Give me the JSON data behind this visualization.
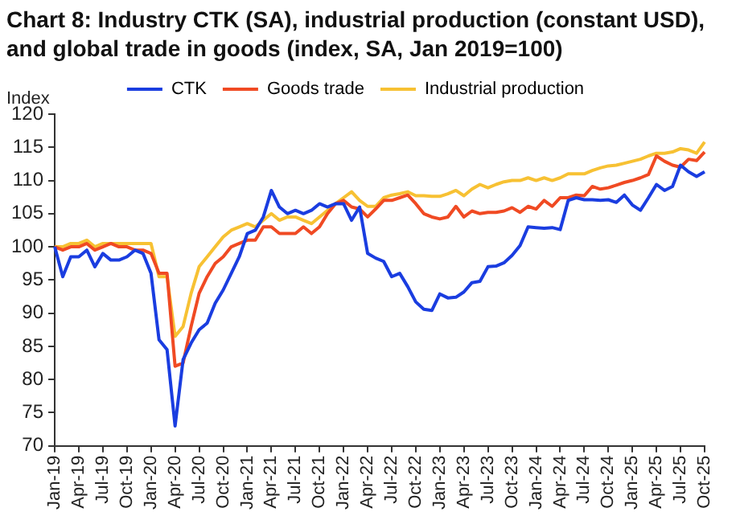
{
  "chart_data": {
    "type": "line",
    "title": "Chart 8: Industry CTK (SA), industrial production (constant USD), and global trade in goods (index, SA, Jan 2019=100)",
    "ylabel": "Index",
    "categories": [
      "Jan-19",
      null,
      null,
      "Apr-19",
      null,
      null,
      "Jul-19",
      null,
      null,
      "Oct-19",
      null,
      null,
      "Jan-20",
      null,
      null,
      "Apr-20",
      null,
      null,
      "Jul-20",
      null,
      null,
      "Oct-20",
      null,
      null,
      "Jan-21",
      null,
      null,
      "Apr-21",
      null,
      null,
      "Jul-21",
      null,
      null,
      "Oct-21",
      null,
      null,
      "Jan-22",
      null,
      null,
      "Apr-22",
      null,
      null,
      "Jul-22",
      null,
      null,
      "Oct-22",
      null,
      null,
      "Jan-23",
      null,
      null,
      "Apr-23",
      null,
      null,
      "Jul-23",
      null,
      null,
      "Oct-23",
      null,
      null,
      "Jan-24",
      null,
      null,
      "Apr-24",
      null,
      null,
      "Jul-24",
      null,
      null,
      "Oct-24",
      null,
      null,
      "Jan-25",
      null,
      null,
      "Apr-25",
      null,
      null,
      "Jul-25",
      null,
      null,
      "Oct-25"
    ],
    "series": [
      {
        "name": "CTK",
        "color": "#1a3de0",
        "values": [
          100,
          95.5,
          98.5,
          98.5,
          99.5,
          97,
          99,
          98,
          98,
          98.5,
          99.5,
          99,
          96,
          86,
          84.5,
          73,
          83,
          85.5,
          87.5,
          88.5,
          91.5,
          93.5,
          96,
          98.5,
          102,
          102.5,
          104.5,
          108.5,
          106,
          105,
          105.5,
          105,
          105.5,
          106.5,
          106,
          106.5,
          106.5,
          104,
          106,
          99,
          98.3,
          97.8,
          95.5,
          96,
          94,
          91.7,
          90.6,
          90.4,
          92.9,
          92.3,
          92.4,
          93.2,
          94.6,
          94.8,
          97,
          97.1,
          97.6,
          98.7,
          100.2,
          103,
          102.9,
          102.8,
          102.9,
          102.6,
          107,
          107.4,
          107.1,
          107.1,
          107,
          107.1,
          106.7,
          107.8,
          106.3,
          105.5,
          107.4,
          109.4,
          108.5,
          109.1,
          112.3,
          111.3,
          110.6,
          111.3
        ]
      },
      {
        "name": "Goods trade",
        "color": "#f04a23",
        "values": [
          100,
          99.5,
          100,
          100,
          100.5,
          99.5,
          100,
          100.5,
          100,
          100,
          99.5,
          99.5,
          99,
          96,
          96,
          82,
          82.5,
          88,
          93,
          95.5,
          97.5,
          98.5,
          100,
          100.5,
          101,
          101,
          103,
          103,
          102,
          102,
          102,
          103,
          102,
          103,
          105,
          106.5,
          107,
          106,
          105.7,
          104.5,
          105.7,
          107,
          107,
          107.4,
          107.8,
          106.5,
          105,
          104.5,
          104.2,
          104.5,
          106.1,
          104.5,
          105.4,
          105,
          105.2,
          105.2,
          105.4,
          105.9,
          105.2,
          106.1,
          105.7,
          107,
          106.1,
          107.4,
          107.4,
          107.8,
          107.7,
          109.1,
          108.7,
          108.9,
          109.3,
          109.7,
          110,
          110.4,
          110.9,
          113.7,
          112.9,
          112.3,
          112,
          113.2,
          113,
          114.3
        ]
      },
      {
        "name": "Industrial production",
        "color": "#f7c133",
        "values": [
          100,
          100,
          100.5,
          100.5,
          101,
          100,
          100.5,
          100.5,
          100.5,
          100.5,
          100.5,
          100.5,
          100.5,
          95.5,
          95.5,
          86.5,
          88,
          93,
          97,
          98.5,
          100,
          101.5,
          102.5,
          103,
          103.5,
          103,
          104,
          105,
          104,
          104.5,
          104.5,
          104,
          103.5,
          104.5,
          105.5,
          106.5,
          107.4,
          108.3,
          107,
          106.1,
          106.1,
          107.4,
          107.8,
          108,
          108.3,
          107.7,
          107.7,
          107.6,
          107.6,
          108,
          108.5,
          107.7,
          108.7,
          109.4,
          108.9,
          109.4,
          109.8,
          110,
          110,
          110.4,
          110,
          110.4,
          110,
          110.4,
          111,
          111,
          111,
          111.5,
          111.9,
          112.2,
          112.3,
          112.6,
          112.9,
          113.2,
          113.7,
          114.1,
          114.1,
          114.3,
          114.8,
          114.6,
          114.1,
          115.8
        ]
      }
    ],
    "ylim": [
      70,
      120
    ],
    "yticks": [
      70,
      75,
      80,
      85,
      90,
      95,
      100,
      105,
      110,
      115,
      120
    ],
    "grid": false,
    "legend": "top",
    "marker": "none",
    "line_style": "solid"
  }
}
